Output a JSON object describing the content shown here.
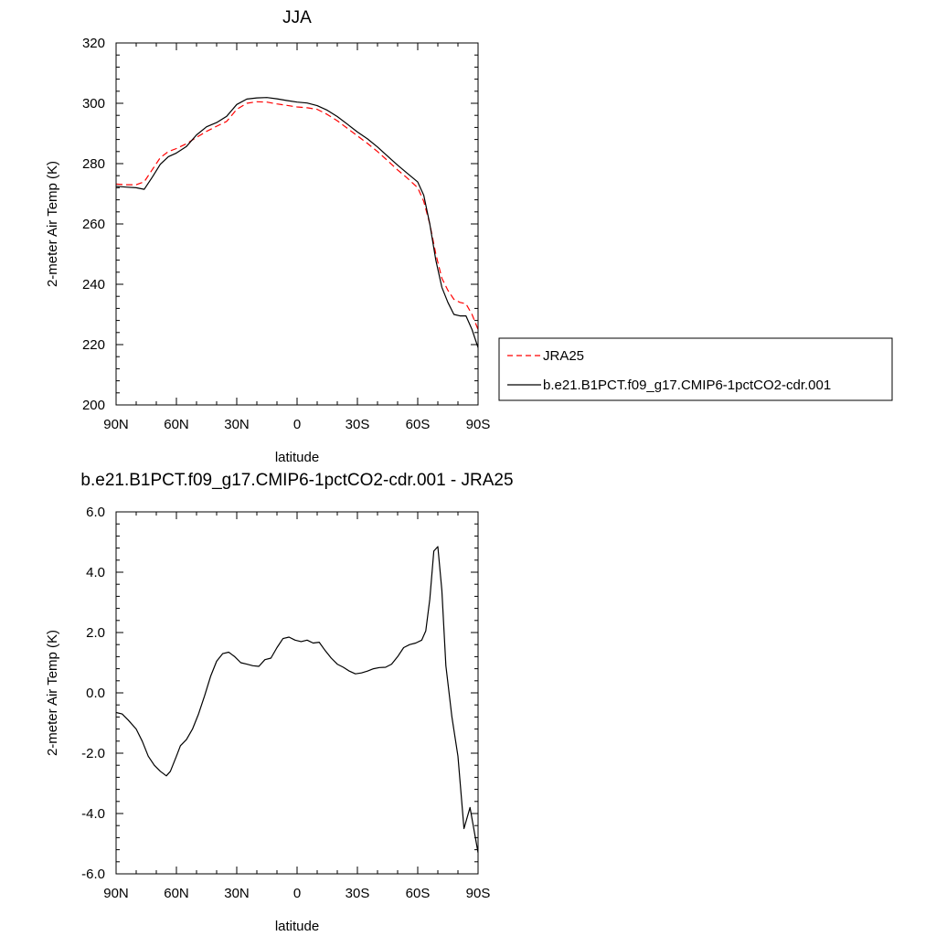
{
  "chart_data": [
    {
      "type": "line",
      "title": "JJA",
      "xlabel": "latitude",
      "ylabel": "2-meter Air Temp (K)",
      "xlim": [
        90,
        -90
      ],
      "ylim": [
        200,
        320
      ],
      "x_ticks": [
        90,
        60,
        30,
        0,
        -30,
        -60,
        -90
      ],
      "x_tick_labels": [
        "90N",
        "60N",
        "30N",
        "0",
        "30S",
        "60S",
        "90S"
      ],
      "y_ticks": [
        200,
        220,
        240,
        260,
        280,
        300,
        320
      ],
      "y_tick_labels": [
        "200",
        "220",
        "240",
        "260",
        "280",
        "300",
        "320"
      ],
      "legend": {
        "placement": "right-outside"
      },
      "series": [
        {
          "name": "JRA25",
          "color": "#ff0000",
          "dash": "dashed",
          "x": [
            90,
            85,
            80,
            76,
            72,
            68,
            64,
            60,
            55,
            50,
            45,
            40,
            35,
            30,
            25,
            20,
            15,
            10,
            5,
            0,
            -5,
            -10,
            -15,
            -20,
            -25,
            -30,
            -35,
            -40,
            -45,
            -50,
            -55,
            -60,
            -63,
            -66,
            -69,
            -72,
            -75,
            -78,
            -81,
            -84,
            -87,
            -90
          ],
          "y": [
            273.2,
            273,
            273,
            274,
            278,
            282,
            284,
            285,
            286.6,
            288.7,
            290.7,
            292.4,
            294,
            298,
            300,
            300.5,
            300.4,
            299.8,
            299.3,
            298.8,
            298.5,
            298,
            296.3,
            294.2,
            291.7,
            289.2,
            286.7,
            284,
            281,
            277.9,
            275.1,
            272,
            267.5,
            260,
            250,
            242,
            238,
            235,
            234,
            233.5,
            230,
            225
          ]
        },
        {
          "name": "b.e21.B1PCT.f09_g17.CMIP6-1pctCO2-cdr.001",
          "color": "#000000",
          "dash": "solid",
          "x": [
            90,
            85,
            80,
            76,
            72,
            68,
            64,
            60,
            55,
            50,
            45,
            40,
            35,
            30,
            25,
            20,
            15,
            10,
            5,
            0,
            -5,
            -10,
            -15,
            -20,
            -25,
            -30,
            -35,
            -40,
            -45,
            -50,
            -55,
            -60,
            -63,
            -66,
            -69,
            -72,
            -75,
            -78,
            -81,
            -84,
            -87,
            -90
          ],
          "y": [
            272.5,
            272.2,
            272,
            271.5,
            275.5,
            279.8,
            282.3,
            283.5,
            285.7,
            289.5,
            292.2,
            293.6,
            295.7,
            299.6,
            301.4,
            301.8,
            301.9,
            301.5,
            300.9,
            300.4,
            300.1,
            299.2,
            297.7,
            295.6,
            293.1,
            290.5,
            288.2,
            285.5,
            282.5,
            279.5,
            276.7,
            273.9,
            269.5,
            260,
            248,
            239,
            234,
            230,
            229.5,
            229.5,
            225,
            219
          ]
        }
      ]
    },
    {
      "type": "line",
      "title": "b.e21.B1PCT.f09_g17.CMIP6-1pctCO2-cdr.001 - JRA25",
      "xlabel": "latitude",
      "ylabel": "2-meter Air Temp (K)",
      "xlim": [
        90,
        -90
      ],
      "ylim": [
        -6,
        6
      ],
      "x_ticks": [
        90,
        60,
        30,
        0,
        -30,
        -60,
        -90
      ],
      "x_tick_labels": [
        "90N",
        "60N",
        "30N",
        "0",
        "30S",
        "60S",
        "90S"
      ],
      "y_ticks": [
        -6,
        -4,
        -2,
        0,
        2,
        4,
        6
      ],
      "y_tick_labels": [
        "-6.0",
        "-4.0",
        "-2.0",
        "0.0",
        "2.0",
        "4.0",
        "6.0"
      ],
      "series": [
        {
          "color": "#000000",
          "dash": "solid",
          "x": [
            90,
            87,
            84,
            80,
            77,
            74,
            71,
            68,
            65,
            63,
            60,
            58,
            55,
            52,
            49,
            46,
            43,
            40,
            37,
            34,
            31,
            28,
            25,
            22,
            19,
            16,
            13,
            10,
            7,
            4,
            1,
            -2,
            -5,
            -8,
            -11,
            -14,
            -17,
            -20,
            -23,
            -26,
            -29,
            -32,
            -35,
            -38,
            -41,
            -44,
            -47,
            -50,
            -53,
            -56,
            -59,
            -62,
            -64,
            -66,
            -68,
            -70,
            -72,
            -74,
            -77,
            -80,
            -83,
            -86,
            -90
          ],
          "y": [
            -0.65,
            -0.7,
            -0.9,
            -1.2,
            -1.6,
            -2.1,
            -2.4,
            -2.6,
            -2.75,
            -2.6,
            -2.1,
            -1.75,
            -1.55,
            -1.2,
            -0.7,
            -0.1,
            0.55,
            1.05,
            1.3,
            1.35,
            1.2,
            1.0,
            0.95,
            0.9,
            0.88,
            1.1,
            1.15,
            1.5,
            1.8,
            1.85,
            1.75,
            1.7,
            1.75,
            1.65,
            1.68,
            1.4,
            1.15,
            0.95,
            0.85,
            0.72,
            0.63,
            0.66,
            0.72,
            0.8,
            0.84,
            0.85,
            0.95,
            1.2,
            1.5,
            1.6,
            1.65,
            1.75,
            2.05,
            3.1,
            4.7,
            4.85,
            3.4,
            0.9,
            -0.8,
            -2.1,
            -4.5,
            -3.8,
            -5.3
          ]
        }
      ]
    }
  ],
  "page": {
    "top_title": "JJA",
    "bottom_title": "b.e21.B1PCT.f09_g17.CMIP6-1pctCO2-cdr.001 - JRA25",
    "xlabel": "latitude",
    "ylabel": "2-meter Air Temp (K)",
    "legend_entry_1": "JRA25",
    "legend_entry_2": "b.e21.B1PCT.f09_g17.CMIP6-1pctCO2-cdr.001"
  }
}
